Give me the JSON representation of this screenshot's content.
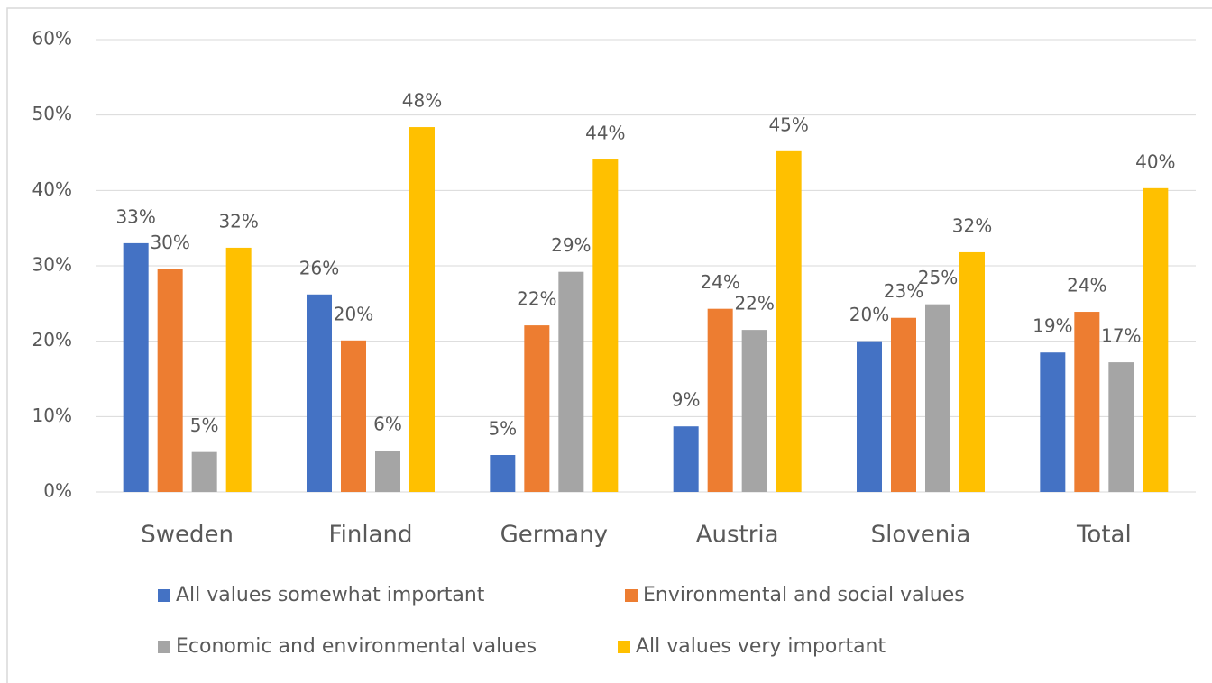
{
  "chart_data": {
    "type": "bar",
    "categories": [
      "Sweden",
      "Finland",
      "Germany",
      "Austria",
      "Slovenia",
      "Total"
    ],
    "series": [
      {
        "name": "All values somewhat important",
        "color": "#4472c4",
        "values": [
          33.0,
          26.2,
          4.9,
          8.7,
          20.0,
          18.5
        ],
        "value_labels": [
          "33%",
          "26%",
          "5%",
          "9%",
          "20%",
          "19%"
        ]
      },
      {
        "name": "Environmental and social values",
        "color": "#ed7d31",
        "values": [
          29.6,
          20.1,
          22.1,
          24.3,
          23.1,
          23.9
        ],
        "value_labels": [
          "30%",
          "20%",
          "22%",
          "24%",
          "23%",
          "24%"
        ]
      },
      {
        "name": "Economic and environmental values",
        "color": "#a5a5a5",
        "values": [
          5.3,
          5.5,
          29.2,
          21.5,
          24.9,
          17.2
        ],
        "value_labels": [
          "5%",
          "6%",
          "29%",
          "22%",
          "25%",
          "17%"
        ]
      },
      {
        "name": "All values very important",
        "color": "#ffc000",
        "values": [
          32.4,
          48.4,
          44.1,
          45.2,
          31.8,
          40.3
        ],
        "value_labels": [
          "32%",
          "48%",
          "44%",
          "45%",
          "32%",
          "40%"
        ]
      }
    ],
    "ylim": [
      0,
      60
    ],
    "yticks": [
      {
        "value": 0,
        "label": "0%"
      },
      {
        "value": 10,
        "label": "10%"
      },
      {
        "value": 20,
        "label": "20%"
      },
      {
        "value": 30,
        "label": "30%"
      },
      {
        "value": 40,
        "label": "40%"
      },
      {
        "value": 50,
        "label": "50%"
      },
      {
        "value": 60,
        "label": "60%"
      }
    ],
    "grid": true,
    "legend": "bottom"
  }
}
